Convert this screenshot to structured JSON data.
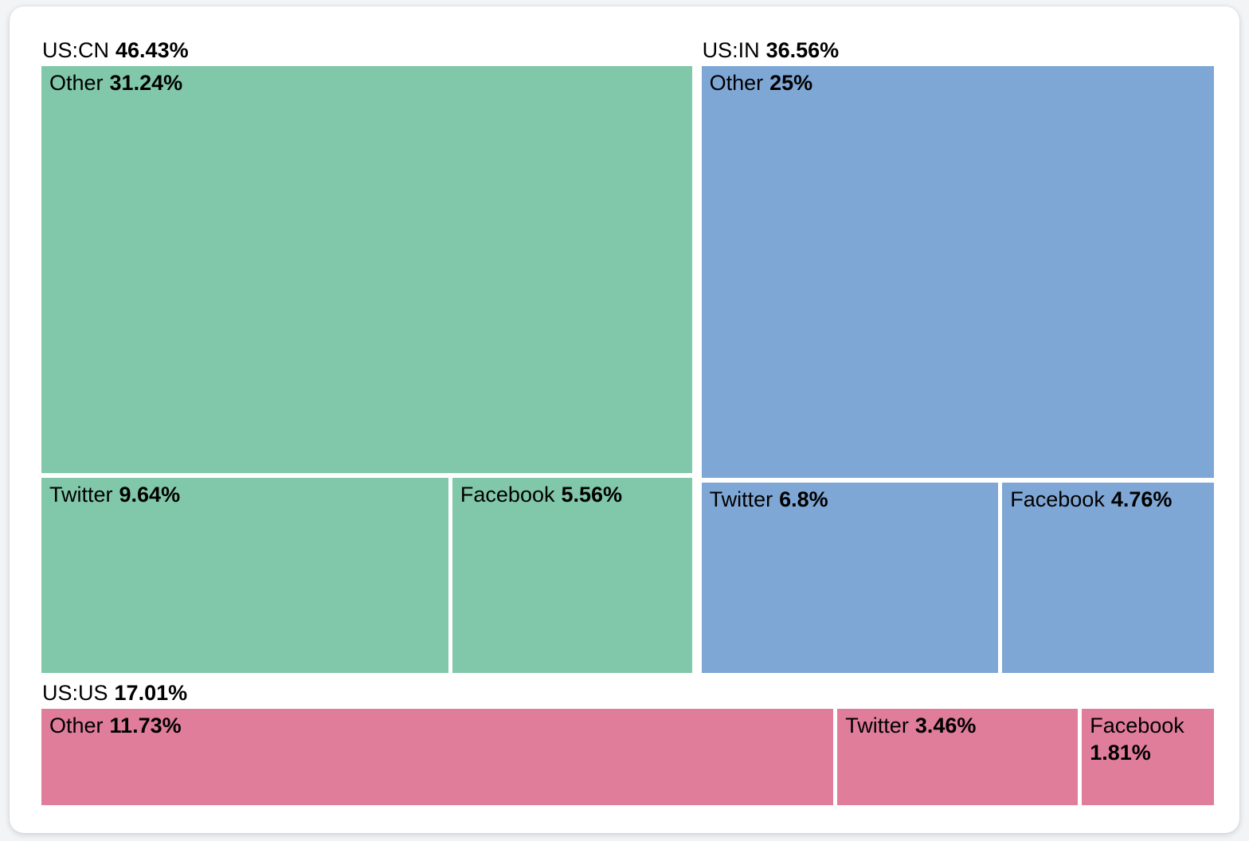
{
  "page": {
    "background_color": "#f3f4f6",
    "card_background_color": "#ffffff",
    "text_color": "#000000"
  },
  "chart_data": {
    "type": "treemap",
    "unit": "%",
    "legend": "none",
    "layout": "nested treemap: group header above each group's tile area; child tiles labeled name + bold percent",
    "groups": [
      {
        "label": "US:CN",
        "value": 46.43,
        "value_label": "46.43%",
        "color": "#81c7a9",
        "children": [
          {
            "name": "Other",
            "value": 31.24,
            "value_label": "31.24%"
          },
          {
            "name": "Twitter",
            "value": 9.64,
            "value_label": "9.64%"
          },
          {
            "name": "Facebook",
            "value": 5.56,
            "value_label": "5.56%"
          }
        ]
      },
      {
        "label": "US:IN",
        "value": 36.56,
        "value_label": "36.56%",
        "color": "#7fa7d5",
        "children": [
          {
            "name": "Other",
            "value": 25,
            "value_label": "25%"
          },
          {
            "name": "Twitter",
            "value": 6.8,
            "value_label": "6.8%"
          },
          {
            "name": "Facebook",
            "value": 4.76,
            "value_label": "4.76%"
          }
        ]
      },
      {
        "label": "US:US",
        "value": 17.01,
        "value_label": "17.01%",
        "color": "#e07d9b",
        "children": [
          {
            "name": "Other",
            "value": 11.73,
            "value_label": "11.73%"
          },
          {
            "name": "Twitter",
            "value": 3.46,
            "value_label": "3.46%"
          },
          {
            "name": "Facebook",
            "value": 1.81,
            "value_label": "1.81%"
          }
        ]
      }
    ]
  }
}
